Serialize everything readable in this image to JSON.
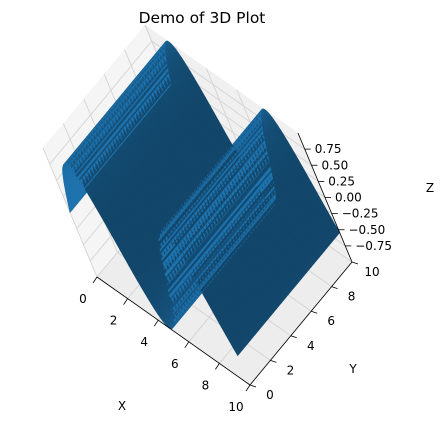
{
  "chart_data": {
    "type": "surface",
    "title": "Demo of 3D Plot",
    "function": "z = sin(x)",
    "xlabel": "X",
    "ylabel": "Y",
    "zlabel": "Z",
    "xlim": [
      0,
      10
    ],
    "ylim": [
      0,
      10
    ],
    "zlim": [
      -1,
      1
    ],
    "x_ticks": [
      0,
      2,
      4,
      6,
      8,
      10
    ],
    "x_tick_labels": [
      "0",
      "2",
      "4",
      "6",
      "8",
      "10"
    ],
    "y_ticks": [
      0,
      2,
      4,
      6,
      8,
      10
    ],
    "y_tick_labels": [
      "0",
      "2",
      "4",
      "6",
      "8",
      "10"
    ],
    "z_ticks": [
      0.75,
      0.5,
      0.25,
      0,
      -0.25,
      -0.5,
      -0.75
    ],
    "z_tick_labels": [
      "0.75",
      "0.50",
      "0.25",
      "0.00",
      "−0.25",
      "−0.50",
      "−0.75"
    ],
    "grid": true,
    "surface_color": "#1f77b4",
    "pane_color": "#f2f2f2"
  }
}
